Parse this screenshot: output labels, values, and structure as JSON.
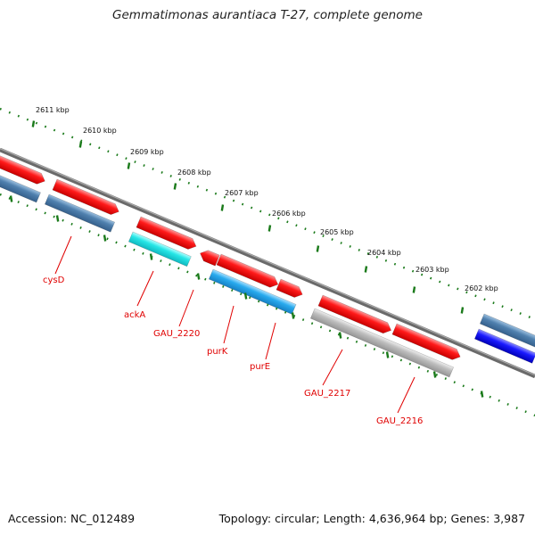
{
  "title": "Gemmatimonas aurantiaca T-27, complete genome",
  "footer": {
    "accession": "Accession: NC_012489",
    "summary": "Topology: circular; Length: 4,636,964 bp; Genes: 3,987"
  },
  "colors": {
    "tick": "#1a7a1a",
    "backbone": "#7a7a7a",
    "label": "#e00000",
    "red_gene": "#ee1111",
    "blue_gene": "#4a7aa8",
    "cyan_gene": "#22dddd",
    "sky_gene": "#22a8e6",
    "gray_gene": "#b8b8b8",
    "navy_gene": "#1111ee"
  },
  "scale_labels": [
    "2611 kbp",
    "2610 kbp",
    "2609 kbp",
    "2608 kbp",
    "2607 kbp",
    "2606 kbp",
    "2605 kbp",
    "2604 kbp",
    "2603 kbp",
    "2602 kbp"
  ],
  "gene_labels": [
    "cysD",
    "ackA",
    "GAU_2220",
    "purK",
    "purE",
    "GAU_2217",
    "GAU_2216"
  ]
}
